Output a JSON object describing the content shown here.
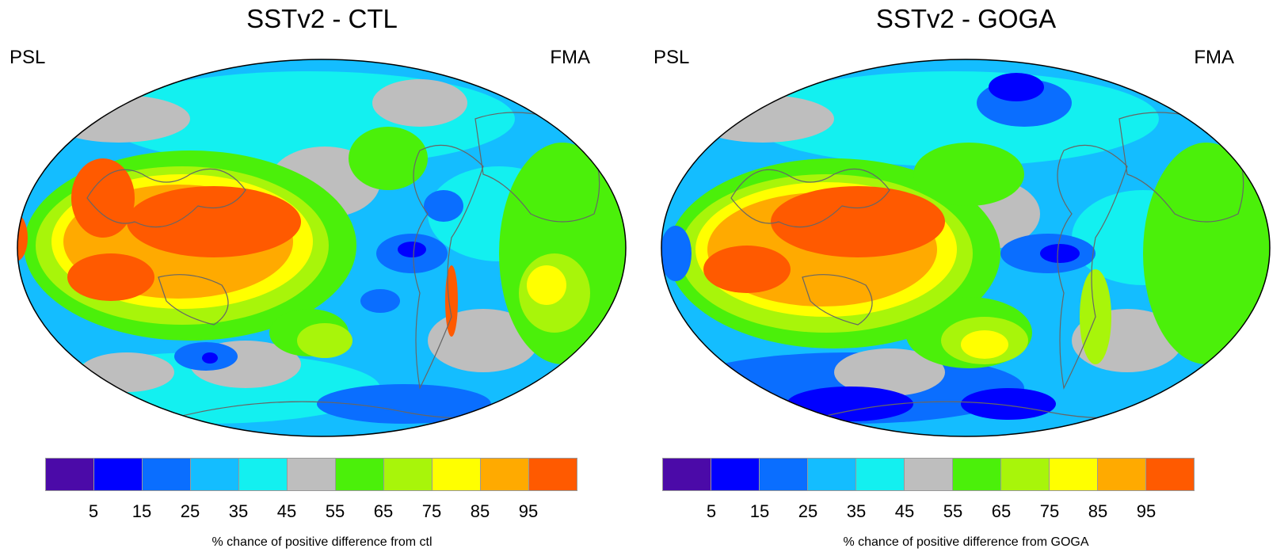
{
  "panels": [
    {
      "title": "SSTv2 - CTL",
      "left_label": "PSL",
      "right_label": "FMA",
      "caption": "% chance of positive difference from ctl"
    },
    {
      "title": "SSTv2 - GOGA",
      "left_label": "PSL",
      "right_label": "FMA",
      "caption": "% chance of positive difference from GOGA"
    }
  ],
  "colorbar": {
    "colors": [
      "#4b0aa8",
      "#0000ff",
      "#0a6eff",
      "#14bdff",
      "#13f0f0",
      "#bebebe",
      "#4bf00a",
      "#a8f50a",
      "#ffff00",
      "#ffaa00",
      "#ff5a00"
    ],
    "tick_labels": [
      "5",
      "15",
      "25",
      "35",
      "45",
      "55",
      "65",
      "75",
      "85",
      "95"
    ]
  }
}
